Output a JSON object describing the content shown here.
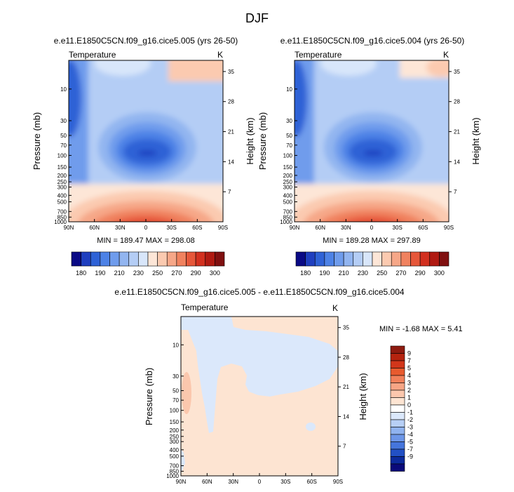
{
  "figure_title": "DJF",
  "chart_data": [
    {
      "type": "heatmap",
      "title": "e.e11.E1850C5CN.f09_g16.cice5.005 (yrs 26-50)",
      "left_string": "Temperature",
      "units": "K",
      "ylabel": "Pressure (mb)",
      "ylabel_right": "Height (km)",
      "x_ticks": [
        "90N",
        "60N",
        "30N",
        "0",
        "30S",
        "60S",
        "90S"
      ],
      "y_ticks": [
        "10",
        "30",
        "50",
        "70",
        "100",
        "150",
        "200",
        "250",
        "300",
        "400",
        "500",
        "700",
        "850",
        "1000"
      ],
      "height_ticks": [
        "35",
        "28",
        "21",
        "14",
        "7"
      ],
      "stats_text": "MIN = 189.47   MAX = 298.08",
      "colorbar_labels": [
        "180",
        "190",
        "210",
        "230",
        "250",
        "270",
        "290",
        "300"
      ]
    },
    {
      "type": "heatmap",
      "title": "e.e11.E1850C5CN.f09_g16.cice5.004 (yrs 26-50)",
      "left_string": "Temperature",
      "units": "K",
      "ylabel": "Pressure (mb)",
      "ylabel_right": "Height (km)",
      "x_ticks": [
        "90N",
        "60N",
        "30N",
        "0",
        "30S",
        "60S",
        "90S"
      ],
      "y_ticks": [
        "10",
        "30",
        "50",
        "70",
        "100",
        "150",
        "200",
        "250",
        "300",
        "400",
        "500",
        "700",
        "850",
        "1000"
      ],
      "height_ticks": [
        "35",
        "28",
        "21",
        "14",
        "7"
      ],
      "stats_text": "MIN = 189.28   MAX = 297.89",
      "colorbar_labels": [
        "180",
        "190",
        "210",
        "230",
        "250",
        "270",
        "290",
        "300"
      ]
    },
    {
      "type": "heatmap",
      "title": "e.e11.E1850C5CN.f09_g16.cice5.005 - e.e11.E1850C5CN.f09_g16.cice5.004",
      "left_string": "Temperature",
      "units": "K",
      "ylabel": "Pressure (mb)",
      "ylabel_right": "Height (km)",
      "x_ticks": [
        "90N",
        "60N",
        "30N",
        "0",
        "30S",
        "60S",
        "90S"
      ],
      "y_ticks": [
        "10",
        "30",
        "50",
        "70",
        "100",
        "150",
        "200",
        "250",
        "300",
        "400",
        "500",
        "700",
        "850",
        "1000"
      ],
      "height_ticks": [
        "35",
        "28",
        "21",
        "14",
        "7"
      ],
      "stats_text": "MIN =  -1.68   MAX =   5.41",
      "colorbar_labels": [
        "9",
        "7",
        "5",
        "4",
        "3",
        "2",
        "1",
        "0",
        "-1",
        "-2",
        "-3",
        "-4",
        "-5",
        "-7",
        "-9"
      ]
    }
  ],
  "colors": {
    "absolute_scale": [
      "#0a0a85",
      "#1f3fbf",
      "#2f62d6",
      "#4d82e6",
      "#6f9cec",
      "#92b5f0",
      "#b4cdf5",
      "#d8e6fa",
      "#fde6d7",
      "#fbcab0",
      "#f6a788",
      "#f0825f",
      "#e6573a",
      "#d2301f",
      "#b01a12",
      "#801010"
    ],
    "diff_scale": [
      "#8e1b10",
      "#b5230f",
      "#d2361a",
      "#e85a2e",
      "#f2805a",
      "#f7a585",
      "#fbc7ad",
      "#fde4d2",
      "#ffffff",
      "#dbe8fb",
      "#b7cff5",
      "#90b3ef",
      "#6d96e8",
      "#4575dc",
      "#2250c4",
      "#0c2a9c",
      "#0a0a7a"
    ]
  }
}
